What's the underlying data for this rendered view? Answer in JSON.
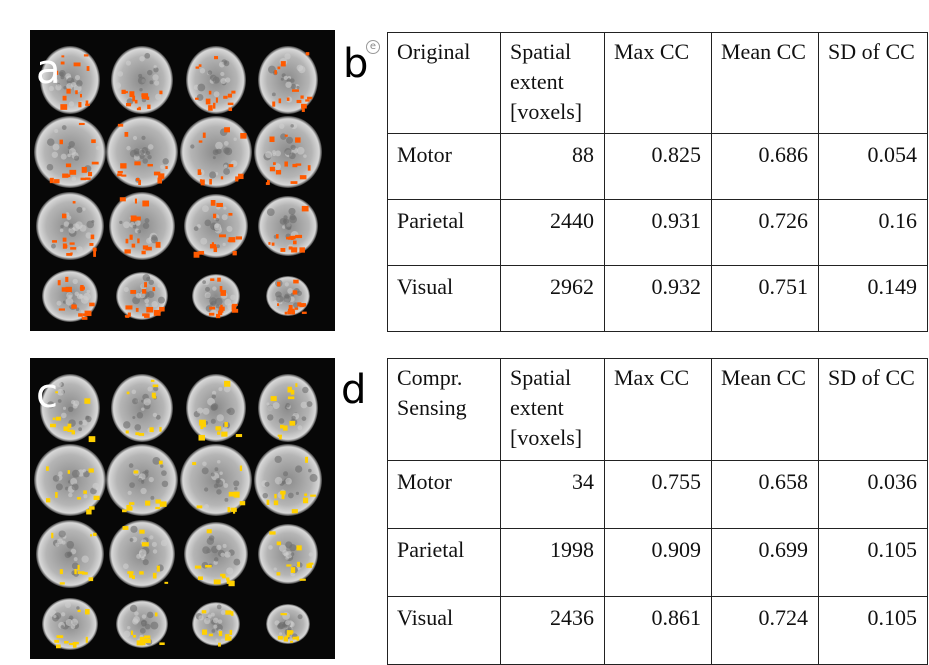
{
  "colors": {
    "panel_a_activation": "#ff5a00",
    "panel_c_activation": "#ffd000",
    "background": "#ffffff",
    "image_background": "#070707"
  },
  "panels": {
    "a": {
      "label": "a"
    },
    "b": {
      "label": "b",
      "table": {
        "headers": [
          "Original",
          "Spatial extent [voxels]",
          "Max CC",
          "Mean CC",
          "SD of CC"
        ],
        "rows": [
          [
            "Motor",
            "88",
            "0.825",
            "0.686",
            "0.054"
          ],
          [
            "Parietal",
            "2440",
            "0.931",
            "0.726",
            "0.16"
          ],
          [
            "Visual",
            "2962",
            "0.932",
            "0.751",
            "0.149"
          ]
        ]
      }
    },
    "c": {
      "label": "c"
    },
    "d": {
      "label": "d",
      "table": {
        "headers": [
          "Compr. Sensing",
          "Spatial extent [voxels]",
          "Max CC",
          "Mean CC",
          "SD of CC"
        ],
        "rows": [
          [
            "Motor",
            "34",
            "0.755",
            "0.658",
            "0.036"
          ],
          [
            "Parietal",
            "1998",
            "0.909",
            "0.699",
            "0.105"
          ],
          [
            "Visual",
            "2436",
            "0.861",
            "0.724",
            "0.105"
          ]
        ]
      }
    }
  }
}
